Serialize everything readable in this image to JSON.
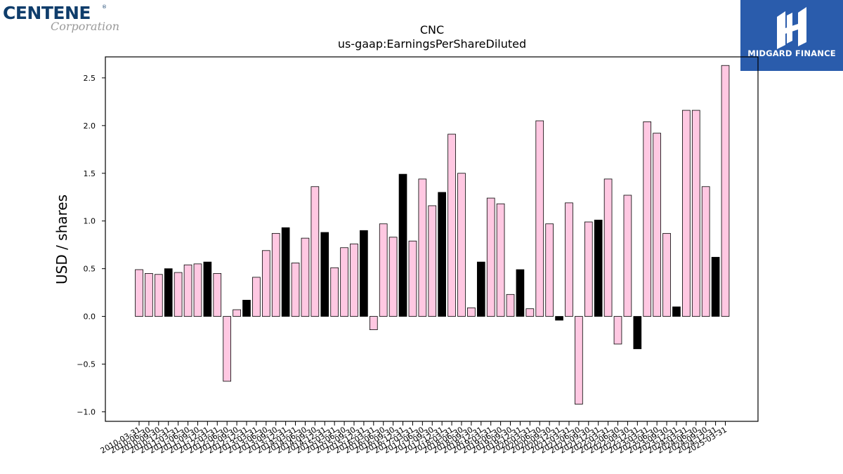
{
  "logos": {
    "left": {
      "brand": "CENTENE",
      "sub": "Corporation",
      "reg": "®"
    },
    "right": {
      "name": "MIDGARD FINANCE",
      "bg": "#2a5cac"
    }
  },
  "chart_data": {
    "type": "bar",
    "title": "CNC",
    "subtitle": "us-gaap:EarningsPerShareDiluted",
    "ylabel": "USD / shares",
    "xlabel": "",
    "ylim": [
      -1.1,
      2.72
    ],
    "yticks": [
      -1.0,
      -0.5,
      0.0,
      0.5,
      1.0,
      1.5,
      2.0,
      2.5
    ],
    "colors": {
      "quarter": "#ffc8e2",
      "annual": "#000000",
      "edge": "#000000"
    },
    "categories": [
      "2010-03-31",
      "2010-06-30",
      "2010-09-30",
      "2010-12-31",
      "2011-03-31",
      "2011-06-30",
      "2011-09-30",
      "2011-12-31",
      "2012-03-31",
      "2012-06-30",
      "2012-09-30",
      "2012-12-31",
      "2013-03-31",
      "2013-06-30",
      "2013-09-30",
      "2013-12-31",
      "2014-03-31",
      "2014-06-30",
      "2014-09-30",
      "2014-12-31",
      "2015-03-31",
      "2015-06-30",
      "2015-09-30",
      "2015-12-31",
      "2016-03-31",
      "2016-06-30",
      "2016-09-30",
      "2016-12-31",
      "2017-03-31",
      "2017-06-30",
      "2017-09-30",
      "2017-12-31",
      "2018-03-31",
      "2018-06-30",
      "2018-09-30",
      "2018-12-31",
      "2019-03-31",
      "2019-06-30",
      "2019-09-30",
      "2019-12-31",
      "2020-03-31",
      "2020-06-30",
      "2020-09-30",
      "2020-12-31",
      "2021-03-31",
      "2021-06-30",
      "2021-09-30",
      "2021-12-31",
      "2022-03-31",
      "2022-06-30",
      "2022-09-30",
      "2022-12-31",
      "2023-03-31",
      "2023-06-30",
      "2023-09-30",
      "2023-12-31",
      "2024-03-31",
      "2024-06-30",
      "2024-09-30",
      "2024-12-31",
      "2025-03-31"
    ],
    "values": [
      0.49,
      0.45,
      0.44,
      0.5,
      0.46,
      0.54,
      0.55,
      0.57,
      0.45,
      -0.68,
      0.07,
      0.17,
      0.41,
      0.69,
      0.87,
      0.93,
      0.56,
      0.82,
      1.36,
      0.88,
      0.51,
      0.72,
      0.76,
      0.9,
      -0.14,
      0.97,
      0.83,
      1.49,
      0.79,
      1.44,
      1.16,
      1.3,
      1.91,
      1.5,
      0.09,
      0.57,
      1.24,
      1.18,
      0.23,
      0.49,
      0.08,
      2.05,
      0.97,
      -0.04,
      1.19,
      -0.92,
      0.99,
      1.01,
      1.44,
      -0.29,
      1.27,
      -0.34,
      2.04,
      1.92,
      0.87,
      0.1,
      2.16,
      2.16,
      1.36,
      0.62,
      2.63
    ],
    "annual": [
      false,
      false,
      false,
      true,
      false,
      false,
      false,
      true,
      false,
      false,
      false,
      true,
      false,
      false,
      false,
      true,
      false,
      false,
      false,
      true,
      false,
      false,
      false,
      true,
      false,
      false,
      false,
      true,
      false,
      false,
      false,
      true,
      false,
      false,
      false,
      true,
      false,
      false,
      false,
      true,
      false,
      false,
      false,
      true,
      false,
      false,
      false,
      true,
      false,
      false,
      false,
      true,
      false,
      false,
      false,
      true,
      false,
      false,
      false,
      true,
      false
    ],
    "grid": false,
    "legend": "none"
  }
}
